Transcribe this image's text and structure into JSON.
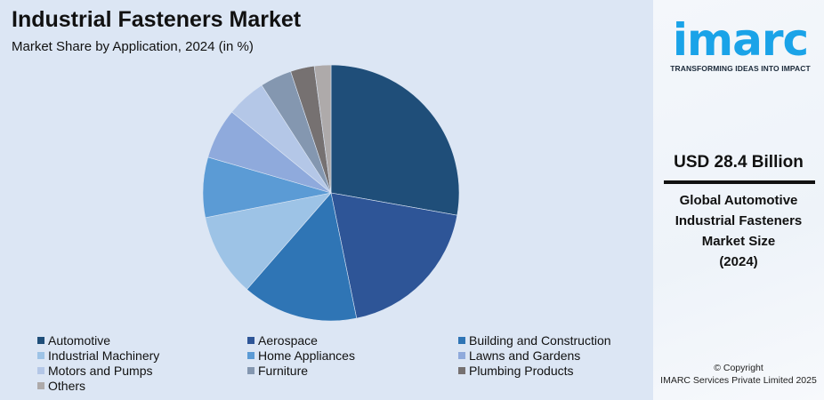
{
  "chart_data": {
    "type": "pie",
    "title": "Industrial Fasteners Market",
    "subtitle": "Market Share by Application, 2024 (in %)",
    "legend_position": "bottom",
    "slices": [
      {
        "label": "Automotive",
        "value": 27.8,
        "color": "#1f4e79"
      },
      {
        "label": "Aerospace",
        "value": 19.0,
        "color": "#2e5597"
      },
      {
        "label": "Building and Construction",
        "value": 14.6,
        "color": "#2f75b5"
      },
      {
        "label": "Industrial Machinery",
        "value": 10.5,
        "color": "#9dc3e6"
      },
      {
        "label": "Home Appliances",
        "value": 7.6,
        "color": "#5b9bd5"
      },
      {
        "label": "Lawns and Gardens",
        "value": 6.4,
        "color": "#8faadc"
      },
      {
        "label": "Motors and Pumps",
        "value": 5.0,
        "color": "#b4c7e7"
      },
      {
        "label": "Furniture",
        "value": 4.0,
        "color": "#8497b0"
      },
      {
        "label": "Plumbing Products",
        "value": 3.0,
        "color": "#767171"
      },
      {
        "label": "Others",
        "value": 2.1,
        "color": "#aeaaaa"
      }
    ]
  },
  "panel": {
    "logo_text": "imarc",
    "tagline": "TRANSFORMING IDEAS INTO IMPACT",
    "value": "USD 28.4 Billion",
    "desc_lines": [
      "Global Automotive",
      "Industrial Fasteners",
      "Market Size",
      "(2024)"
    ],
    "copyright": "© Copyright",
    "copyright_owner": "IMARC Services Private Limited 2025"
  }
}
